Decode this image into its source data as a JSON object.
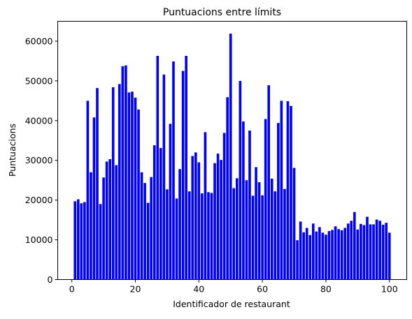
{
  "chart_data": {
    "type": "bar",
    "title": "Puntuacions entre límits",
    "xlabel": "Identificador de restaurant",
    "ylabel": "Puntuacions",
    "xlim": [
      -4.45,
      105.45
    ],
    "ylim": [
      0,
      65000
    ],
    "xticks": [
      0,
      20,
      40,
      60,
      80,
      100
    ],
    "yticks": [
      0,
      10000,
      20000,
      30000,
      40000,
      50000,
      60000
    ],
    "xtick_labels": [
      "0",
      "20",
      "40",
      "60",
      "80",
      "100"
    ],
    "ytick_labels": [
      "0",
      "10000",
      "20000",
      "30000",
      "40000",
      "50000",
      "60000"
    ],
    "grid": false,
    "bar_color": "#0000ff",
    "x": [
      1,
      2,
      3,
      4,
      5,
      6,
      7,
      8,
      9,
      10,
      11,
      12,
      13,
      14,
      15,
      16,
      17,
      18,
      19,
      20,
      21,
      22,
      23,
      24,
      25,
      26,
      27,
      28,
      29,
      30,
      31,
      32,
      33,
      34,
      35,
      36,
      37,
      38,
      39,
      40,
      41,
      42,
      43,
      44,
      45,
      46,
      47,
      48,
      49,
      50,
      51,
      52,
      53,
      54,
      55,
      56,
      57,
      58,
      59,
      60,
      61,
      62,
      63,
      64,
      65,
      66,
      67,
      68,
      69,
      70,
      71,
      72,
      73,
      74,
      75,
      76,
      77,
      78,
      79,
      80,
      81,
      82,
      83,
      84,
      85,
      86,
      87,
      88,
      89,
      90,
      91,
      92,
      93,
      94,
      95,
      96,
      97,
      98,
      99,
      100
    ],
    "values": [
      19700,
      20200,
      19200,
      19500,
      45000,
      27000,
      40800,
      48200,
      19000,
      25700,
      29700,
      30300,
      48400,
      28800,
      49200,
      53700,
      53900,
      47100,
      47300,
      45800,
      42800,
      27000,
      24300,
      19300,
      25800,
      33800,
      56300,
      33100,
      51600,
      22700,
      39200,
      54900,
      20400,
      27800,
      52500,
      56300,
      22200,
      31100,
      32000,
      29500,
      21700,
      37100,
      22000,
      21800,
      29300,
      31700,
      30100,
      36900,
      45900,
      61900,
      23000,
      25500,
      50000,
      39800,
      25000,
      37500,
      21100,
      28300,
      24500,
      21200,
      40400,
      48900,
      25400,
      22200,
      39400,
      45000,
      22800,
      44900,
      43700,
      28100,
      9900,
      14600,
      11900,
      13000,
      11200,
      14100,
      12100,
      13200,
      11800,
      11300,
      12200,
      12500,
      13400,
      12700,
      12400,
      13000,
      14100,
      14800,
      17000,
      12600,
      14000,
      13700,
      15800,
      13900,
      13900,
      15100,
      14800,
      13800,
      14300,
      11800
    ]
  }
}
